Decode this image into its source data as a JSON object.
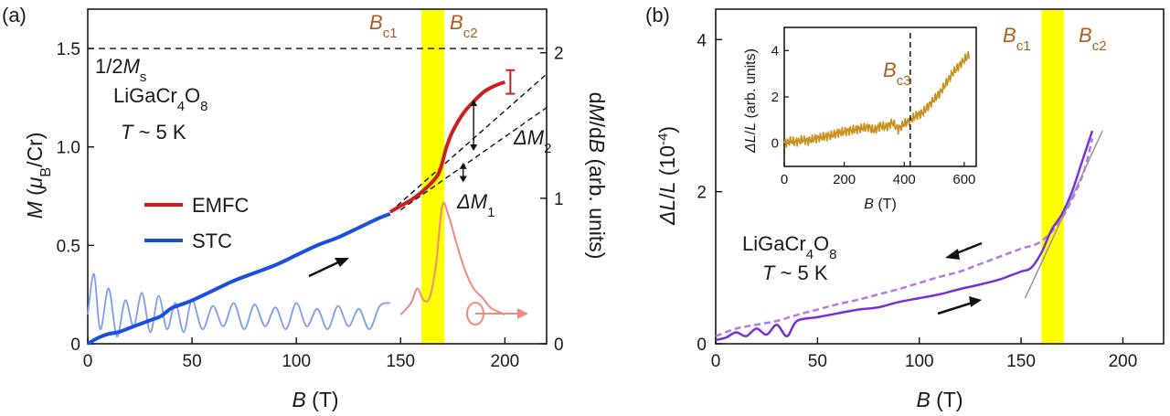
{
  "chart_data": [
    {
      "panel": "(a)",
      "type": "line",
      "xlabel": "B (T)",
      "ylabel": "M (μB/Cr)",
      "y2label": "dM/dB (arb. units)",
      "xlim": [
        0,
        220
      ],
      "ylim": [
        0,
        1.7
      ],
      "y2lim": [
        0,
        2.3
      ],
      "xticks": [
        0,
        50,
        100,
        150,
        200
      ],
      "yticks": [
        "0",
        "0.5",
        "1.0",
        "1.5"
      ],
      "y2ticks": [
        "0",
        "1",
        "2"
      ],
      "bands": [
        {
          "from": 160,
          "to": 171,
          "color": "#ffff00"
        }
      ],
      "band_labels": [
        "Bc1",
        "Bc2"
      ],
      "hline": {
        "y": 1.5,
        "label": "1/2Ms"
      },
      "annotations": {
        "compound": "LiGaCr4O8",
        "temperature": "T ~ 5 K",
        "dm1": "ΔM1",
        "dm2": "ΔM2"
      },
      "legend": {
        "placement": "center-left",
        "entries": [
          "EMFC",
          "STC"
        ]
      },
      "colors": {
        "emfc": "#cc1f1f",
        "stc": "#1a4fe0",
        "stc_deriv": "#7d9ef0",
        "emfc_deriv": "#f08a80",
        "band": "#ffff00"
      },
      "series": [
        {
          "name": "STC",
          "x": [
            0,
            5,
            10,
            15,
            20,
            25,
            30,
            35,
            40,
            45,
            50,
            60,
            70,
            80,
            90,
            100,
            110,
            120,
            130,
            140,
            145
          ],
          "y": [
            0.0,
            0.03,
            0.05,
            0.06,
            0.08,
            0.1,
            0.12,
            0.14,
            0.18,
            0.2,
            0.22,
            0.27,
            0.32,
            0.36,
            0.4,
            0.45,
            0.5,
            0.54,
            0.59,
            0.64,
            0.66
          ]
        },
        {
          "name": "EMFC",
          "x": [
            145,
            150,
            155,
            160,
            165,
            168,
            170,
            172,
            175,
            180,
            185,
            190,
            195,
            200
          ],
          "y": [
            0.67,
            0.7,
            0.73,
            0.77,
            0.82,
            0.86,
            0.92,
            1.0,
            1.08,
            1.17,
            1.23,
            1.28,
            1.31,
            1.33
          ],
          "error_bar": {
            "x": 200,
            "y": 1.33,
            "err": 0.06
          }
        },
        {
          "name": "STC dM/dB",
          "axis": "y2",
          "x": [
            0,
            3,
            6,
            10,
            14,
            18,
            22,
            26,
            30,
            34,
            38,
            42,
            46,
            50,
            55,
            60,
            65,
            70,
            75,
            80,
            85,
            90,
            95,
            100,
            105,
            110,
            115,
            120,
            125,
            130,
            135,
            140,
            145
          ],
          "y": [
            0.2,
            0.48,
            0.1,
            0.38,
            0.05,
            0.3,
            0.12,
            0.35,
            0.08,
            0.33,
            0.1,
            0.28,
            0.08,
            0.3,
            0.1,
            0.26,
            0.12,
            0.28,
            0.1,
            0.27,
            0.12,
            0.25,
            0.1,
            0.28,
            0.12,
            0.24,
            0.1,
            0.26,
            0.12,
            0.24,
            0.1,
            0.26,
            0.28
          ]
        },
        {
          "name": "EMFC dM/dB",
          "axis": "y2",
          "x": [
            150,
            155,
            158,
            161,
            164,
            167,
            170,
            173,
            177,
            181,
            185,
            189,
            193,
            197,
            200
          ],
          "y": [
            0.2,
            0.28,
            0.38,
            0.3,
            0.32,
            0.55,
            0.95,
            0.88,
            0.68,
            0.5,
            0.38,
            0.32,
            0.25,
            0.22,
            0.2
          ]
        },
        {
          "name": "linear extrapolation",
          "style": "dashed",
          "x": [
            145,
            220
          ],
          "y": [
            0.67,
            1.37
          ]
        },
        {
          "name": "linear extrapolation 2",
          "style": "dashed",
          "x": [
            150,
            220
          ],
          "y": [
            0.68,
            1.2
          ]
        }
      ]
    },
    {
      "panel": "(b)",
      "type": "line",
      "xlabel": "B (T)",
      "ylabel": "ΔL/L (10^-4)",
      "xlim": [
        0,
        220
      ],
      "ylim": [
        0,
        4.4
      ],
      "xticks": [
        0,
        50,
        100,
        150,
        200
      ],
      "yticks": [
        "0",
        "2",
        "4"
      ],
      "bands": [
        {
          "from": 160,
          "to": 171,
          "color": "#ffff00"
        }
      ],
      "band_labels": [
        "Bc1",
        "Bc2"
      ],
      "annotations": {
        "compound": "LiGaCr4O8",
        "temperature": "T ~ 5 K"
      },
      "colors": {
        "up": "#7a2fd6",
        "down": "#b27be8",
        "fit": "#9a9a9a"
      },
      "series": [
        {
          "name": "up-sweep",
          "x": [
            0,
            5,
            10,
            15,
            20,
            25,
            30,
            35,
            40,
            50,
            60,
            70,
            80,
            90,
            100,
            110,
            120,
            130,
            140,
            145,
            150,
            155,
            160,
            165,
            170,
            175,
            180,
            185
          ],
          "y": [
            0.05,
            0.08,
            0.15,
            0.1,
            0.2,
            0.12,
            0.25,
            0.1,
            0.3,
            0.35,
            0.4,
            0.45,
            0.48,
            0.55,
            0.6,
            0.65,
            0.72,
            0.78,
            0.85,
            0.9,
            0.95,
            1.0,
            1.2,
            1.5,
            1.7,
            2.0,
            2.4,
            2.8
          ]
        },
        {
          "name": "down-sweep",
          "style": "dashed",
          "x": [
            0,
            10,
            20,
            30,
            40,
            50,
            60,
            70,
            80,
            90,
            100,
            110,
            120,
            130,
            140,
            150,
            160,
            170,
            180,
            185
          ],
          "y": [
            0.1,
            0.2,
            0.25,
            0.3,
            0.38,
            0.45,
            0.52,
            0.58,
            0.65,
            0.72,
            0.8,
            0.88,
            0.95,
            1.05,
            1.15,
            1.25,
            1.35,
            1.65,
            2.2,
            2.7
          ]
        },
        {
          "name": "linear fit",
          "x": [
            152,
            190
          ],
          "y": [
            0.6,
            2.8
          ]
        }
      ],
      "inset": {
        "xlabel": "B (T)",
        "ylabel": "ΔL/L (arb. units)",
        "xlim": [
          0,
          640
        ],
        "ylim": [
          -1.0,
          5.0
        ],
        "xticks": [
          0,
          200,
          400,
          600
        ],
        "yticks": [
          "0",
          "2",
          "4"
        ],
        "vline": {
          "x": 420,
          "label": "Bc3"
        },
        "color": "#c8901a",
        "x": [
          0,
          20,
          40,
          60,
          80,
          100,
          120,
          140,
          160,
          180,
          200,
          220,
          240,
          260,
          280,
          300,
          320,
          340,
          360,
          380,
          400,
          420,
          440,
          460,
          480,
          500,
          520,
          540,
          560,
          580,
          600,
          620
        ],
        "y": [
          0.0,
          0.1,
          0.05,
          0.15,
          0.1,
          0.2,
          0.25,
          0.3,
          0.35,
          0.45,
          0.5,
          0.55,
          0.6,
          0.65,
          0.7,
          0.55,
          0.75,
          0.7,
          0.9,
          0.6,
          0.85,
          1.0,
          1.2,
          1.3,
          1.6,
          1.9,
          2.2,
          2.6,
          3.0,
          3.3,
          3.6,
          3.9
        ]
      }
    }
  ]
}
